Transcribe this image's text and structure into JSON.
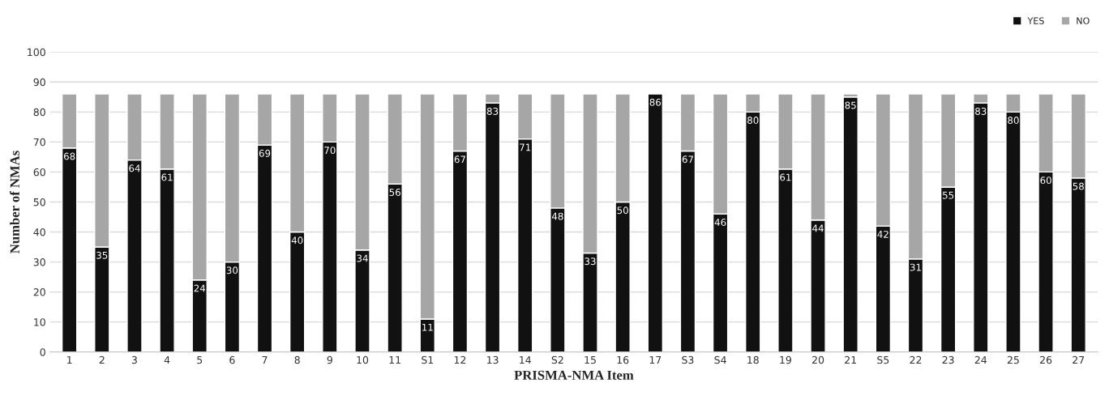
{
  "chart_data": {
    "type": "bar",
    "stacked": true,
    "xlabel": "PRISMA-NMA Item",
    "ylabel": "Number of NMAs",
    "categories": [
      "1",
      "2",
      "3",
      "4",
      "5",
      "6",
      "7",
      "8",
      "9",
      "10",
      "11",
      "S1",
      "12",
      "13",
      "14",
      "S2",
      "15",
      "16",
      "17",
      "S3",
      "S4",
      "18",
      "19",
      "20",
      "21",
      "S5",
      "22",
      "23",
      "24",
      "25",
      "26",
      "27"
    ],
    "series": [
      {
        "name": "YES",
        "color": "#111111",
        "values": [
          68,
          35,
          64,
          61,
          24,
          30,
          69,
          40,
          70,
          34,
          56,
          11,
          67,
          83,
          71,
          48,
          33,
          50,
          86,
          67,
          46,
          80,
          61,
          44,
          85,
          42,
          31,
          55,
          83,
          80,
          60,
          58
        ],
        "value_labels": [
          "68",
          "35",
          "64",
          "61",
          "24",
          "30",
          "69",
          "40",
          "70",
          "34",
          "56",
          "11",
          "67",
          "83",
          "71",
          "48",
          "33",
          "50",
          "86",
          "67",
          "46",
          "80",
          "61",
          "44",
          "85",
          "42",
          "31",
          "55",
          "83",
          "80",
          "60",
          "58"
        ]
      },
      {
        "name": "NO",
        "color": "#a6a6a6",
        "values": [
          18,
          51,
          22,
          25,
          62,
          56,
          17,
          46,
          16,
          52,
          30,
          75,
          19,
          3,
          15,
          38,
          53,
          36,
          null,
          19,
          40,
          6,
          25,
          42,
          1,
          44,
          55,
          31,
          3,
          6,
          26,
          28
        ]
      }
    ],
    "ylim": [
      0,
      100
    ],
    "yticks": [
      0,
      10,
      20,
      30,
      40,
      50,
      60,
      70,
      80,
      90,
      100
    ],
    "grid": "y",
    "legend": "top right"
  }
}
